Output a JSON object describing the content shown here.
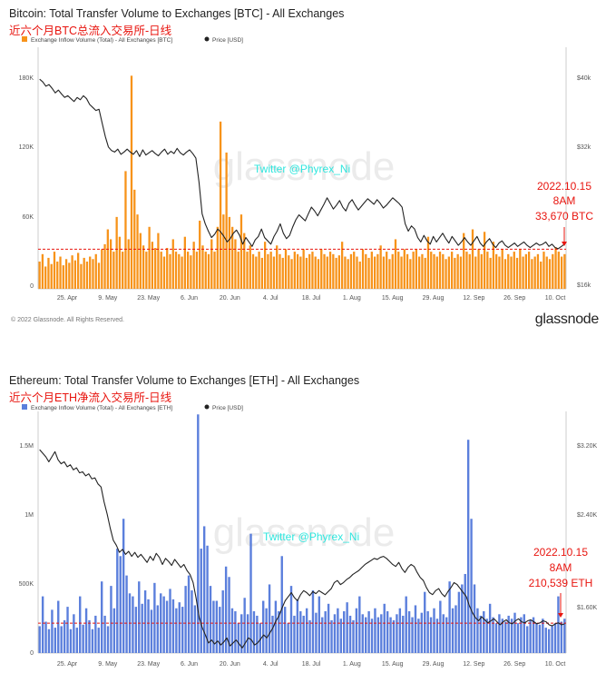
{
  "chart_data": [
    {
      "type": "bar",
      "title": "Bitcoin: Total Transfer Volume to Exchanges [BTC] - All Exchanges",
      "subtitle": "近六个月BTC总流入交易所-日线",
      "legend": [
        "Exchange Inflow Volume (Total) - All Exchanges [BTC]",
        "Price [USD]"
      ],
      "legend_position": "top-left",
      "watermark": "glassnode",
      "twitter": "Twitter @Phyrex_Ni",
      "x_tick_labels": [
        "25. Apr",
        "9. May",
        "23. May",
        "6. Jun",
        "20. Jun",
        "4. Jul",
        "18. Jul",
        "1. Aug",
        "15. Aug",
        "29. Aug",
        "12. Sep",
        "26. Sep",
        "10. Oct"
      ],
      "y_left_ticks": [
        "0",
        "60K",
        "120K",
        "180K"
      ],
      "y_left_range": [
        0,
        195000
      ],
      "y_right_ticks": [
        "$16k",
        "$32k",
        "$40k"
      ],
      "y_right_scale": "log",
      "y_right_range": [
        16000,
        48000
      ],
      "reference_line": 32000,
      "annotation": [
        "2022.10.15",
        "8AM",
        "33,670 BTC"
      ],
      "bar_color": "#f7931a",
      "line_color": "#222222",
      "series": [
        {
          "name": "Exchange Inflow Volume (Total) - All Exchanges [BTC]",
          "axis": "left",
          "values": [
            22000,
            28000,
            18000,
            25000,
            20000,
            30000,
            22000,
            26000,
            19000,
            24000,
            21000,
            27000,
            23000,
            29000,
            20000,
            25000,
            22000,
            26000,
            24000,
            28000,
            21000,
            32000,
            36000,
            48000,
            40000,
            30000,
            58000,
            42000,
            30000,
            95000,
            40000,
            172000,
            80000,
            60000,
            45000,
            35000,
            30000,
            50000,
            38000,
            33000,
            45000,
            30000,
            26000,
            33000,
            28000,
            40000,
            30000,
            28000,
            26000,
            42000,
            30000,
            27000,
            38000,
            30000,
            55000,
            35000,
            30000,
            28000,
            40000,
            30000,
            50000,
            135000,
            60000,
            110000,
            58000,
            50000,
            40000,
            30000,
            60000,
            45000,
            30000,
            35000,
            28000,
            26000,
            30000,
            25000,
            38000,
            28000,
            30000,
            26000,
            35000,
            28000,
            25000,
            32000,
            27000,
            24000,
            30000,
            28000,
            26000,
            32000,
            25000,
            28000,
            30000,
            26000,
            24000,
            32000,
            28000,
            26000,
            30000,
            28000,
            25000,
            27000,
            38000,
            26000,
            24000,
            28000,
            30000,
            26000,
            22000,
            32000,
            28000,
            25000,
            30000,
            26000,
            28000,
            35000,
            26000,
            30000,
            24000,
            28000,
            40000,
            30000,
            26000,
            32000,
            28000,
            24000,
            30000,
            32000,
            26000,
            28000,
            25000,
            42000,
            30000,
            28000,
            26000,
            30000,
            28000,
            24000,
            26000,
            30000,
            25000,
            28000,
            26000,
            45000,
            30000,
            28000,
            48000,
            26000,
            32000,
            28000,
            46000,
            30000,
            25000,
            38000,
            28000,
            26000,
            32000,
            24000,
            28000,
            26000,
            30000,
            25000,
            32000,
            26000,
            28000,
            30000,
            24000,
            26000,
            28000,
            22000,
            30000,
            26000,
            24000,
            28000,
            33670,
            30000,
            26000,
            28000
          ]
        },
        {
          "name": "Price [USD]",
          "axis": "right",
          "values": [
            41500,
            41000,
            40200,
            40500,
            39800,
            39000,
            39500,
            38800,
            38200,
            38500,
            38000,
            37500,
            38200,
            37800,
            38500,
            38000,
            37000,
            36500,
            36000,
            36200,
            34000,
            32000,
            30500,
            30000,
            29800,
            30200,
            29500,
            29800,
            30200,
            29800,
            29500,
            30000,
            29200,
            30100,
            29400,
            29700,
            30000,
            29600,
            29300,
            29800,
            30200,
            29500,
            29900,
            29600,
            30300,
            29700,
            29400,
            29800,
            30100,
            29600,
            29000,
            26000,
            22500,
            21500,
            20800,
            20200,
            20500,
            21000,
            20700,
            20300,
            19800,
            20100,
            20600,
            20900,
            20400,
            19600,
            20200,
            19800,
            19400,
            20000,
            20300,
            21000,
            20200,
            19900,
            19600,
            20300,
            20800,
            21500,
            20600,
            20100,
            20400,
            21200,
            21900,
            22400,
            22100,
            21800,
            22500,
            23200,
            22800,
            22300,
            22900,
            23500,
            24200,
            23600,
            23000,
            23400,
            23900,
            23200,
            22800,
            23600,
            24000,
            23400,
            22900,
            23300,
            23700,
            24100,
            23800,
            23500,
            24000,
            23600,
            23100,
            23400,
            23800,
            24200,
            23900,
            23600,
            23200,
            21500,
            20800,
            21300,
            21000,
            20200,
            19800,
            20400,
            19900,
            19600,
            20300,
            19800,
            20200,
            20600,
            20100,
            19700,
            20300,
            19900,
            19500,
            19800,
            20200,
            19800,
            19500,
            19900,
            20300,
            19700,
            19400,
            19800,
            20100,
            19600,
            19300,
            19700,
            19900,
            19500,
            19300,
            19500,
            19700,
            19400,
            19600,
            19800,
            19500,
            19300,
            19500,
            19700,
            19500,
            19600,
            19800,
            19400,
            19600,
            19300,
            19200,
            19400,
            19600
          ]
        }
      ]
    },
    {
      "type": "bar",
      "title": "Ethereum: Total Transfer Volume to Exchanges [ETH] - All Exchanges",
      "subtitle": "近六个月ETH净流入交易所-日线",
      "legend": [
        "Exchange Inflow Volume (Total) - All Exchanges [ETH]",
        "Price [USD]"
      ],
      "legend_position": "top-left",
      "watermark": "glassnode",
      "twitter": "Twitter @Phyrex_Ni",
      "x_tick_labels": [
        "25. Apr",
        "9. May",
        "23. May",
        "6. Jun",
        "20. Jun",
        "4. Jul",
        "18. Jul",
        "1. Aug",
        "15. Aug",
        "29. Aug",
        "12. Sep",
        "26. Sep",
        "10. Oct"
      ],
      "y_left_ticks": [
        "0",
        "500K",
        "1M",
        "1.5M"
      ],
      "y_left_range": [
        0,
        1620000
      ],
      "y_right_ticks": [
        "$1.60K",
        "$2.40K",
        "$3.20K"
      ],
      "y_right_range": [
        1000,
        3400
      ],
      "reference_line": 200000,
      "annotation": [
        "2022.10.15",
        "8AM",
        "210,539 ETH"
      ],
      "bar_color": "#5b7fdc",
      "line_color": "#222222",
      "series": [
        {
          "name": "Exchange Inflow Volume (Total) - All Exchanges [ETH]",
          "axis": "left",
          "values": [
            180000,
            380000,
            210000,
            160000,
            290000,
            170000,
            350000,
            180000,
            220000,
            310000,
            160000,
            260000,
            170000,
            380000,
            190000,
            300000,
            220000,
            160000,
            250000,
            170000,
            480000,
            250000,
            180000,
            450000,
            300000,
            700000,
            650000,
            900000,
            520000,
            400000,
            380000,
            310000,
            480000,
            330000,
            420000,
            360000,
            290000,
            470000,
            320000,
            400000,
            380000,
            350000,
            430000,
            360000,
            300000,
            340000,
            310000,
            450000,
            520000,
            420000,
            320000,
            1600000,
            700000,
            850000,
            720000,
            450000,
            350000,
            350000,
            310000,
            420000,
            580000,
            510000,
            300000,
            280000,
            200000,
            260000,
            370000,
            260000,
            800000,
            280000,
            250000,
            200000,
            350000,
            300000,
            460000,
            250000,
            350000,
            280000,
            650000,
            310000,
            200000,
            450000,
            250000,
            360000,
            280000,
            250000,
            300000,
            220000,
            420000,
            270000,
            380000,
            240000,
            280000,
            330000,
            220000,
            260000,
            300000,
            230000,
            280000,
            340000,
            250000,
            220000,
            300000,
            380000,
            260000,
            240000,
            280000,
            230000,
            300000,
            240000,
            260000,
            330000,
            280000,
            240000,
            220000,
            260000,
            300000,
            250000,
            380000,
            280000,
            240000,
            320000,
            230000,
            270000,
            410000,
            280000,
            240000,
            300000,
            230000,
            350000,
            260000,
            240000,
            480000,
            300000,
            320000,
            410000,
            460000,
            530000,
            1430000,
            900000,
            460000,
            300000,
            250000,
            280000,
            230000,
            330000,
            240000,
            200000,
            260000,
            230000,
            210000,
            250000,
            230000,
            270000,
            200000,
            240000,
            260000,
            180000,
            220000,
            240000,
            200000,
            190000,
            230000,
            170000,
            160000,
            180000,
            200000,
            380000,
            210539,
            230000
          ]
        },
        {
          "name": "Price [USD]",
          "axis": "right",
          "values": [
            3020,
            2985,
            2950,
            2900,
            2950,
            3000,
            2920,
            2880,
            2900,
            2850,
            2870,
            2820,
            2840,
            2790,
            2800,
            2760,
            2780,
            2730,
            2740,
            2680,
            2650,
            2500,
            2380,
            2240,
            2120,
            2070,
            2000,
            2030,
            1980,
            2010,
            1960,
            2000,
            1950,
            1980,
            1940,
            1900,
            1960,
            1920,
            1990,
            1950,
            1880,
            1940,
            1910,
            1870,
            1930,
            1890,
            1850,
            1880,
            1820,
            1780,
            1700,
            1540,
            1350,
            1250,
            1180,
            1100,
            1130,
            1090,
            1120,
            1080,
            1110,
            1150,
            1070,
            1100,
            1130,
            1090,
            1050,
            1100,
            1150,
            1130,
            1080,
            1100,
            1140,
            1180,
            1150,
            1200,
            1250,
            1320,
            1370,
            1450,
            1520,
            1560,
            1600,
            1550,
            1520,
            1580,
            1620,
            1600,
            1570,
            1610,
            1590,
            1620,
            1600,
            1580,
            1610,
            1640,
            1700,
            1720,
            1680,
            1700,
            1730,
            1750,
            1780,
            1800,
            1820,
            1850,
            1880,
            1900,
            1920,
            1940,
            1930,
            1950,
            1960,
            1940,
            1910,
            1880,
            1860,
            1900,
            1840,
            1800,
            1850,
            1880,
            1860,
            1800,
            1750,
            1720,
            1650,
            1600,
            1580,
            1620,
            1640,
            1590,
            1560,
            1610,
            1650,
            1700,
            1680,
            1640,
            1600,
            1560,
            1470,
            1400,
            1350,
            1320,
            1360,
            1330,
            1300,
            1320,
            1340,
            1310,
            1280,
            1310,
            1330,
            1300,
            1290,
            1320,
            1340,
            1310,
            1300,
            1320,
            1330,
            1310,
            1290,
            1300,
            1320,
            1310,
            1280,
            1270,
            1290,
            1300,
            1280,
            1290
          ]
        }
      ]
    }
  ],
  "footer": {
    "copyright": "© 2022 Glassnode. All Rights Reserved.",
    "brand": "glassnode"
  }
}
